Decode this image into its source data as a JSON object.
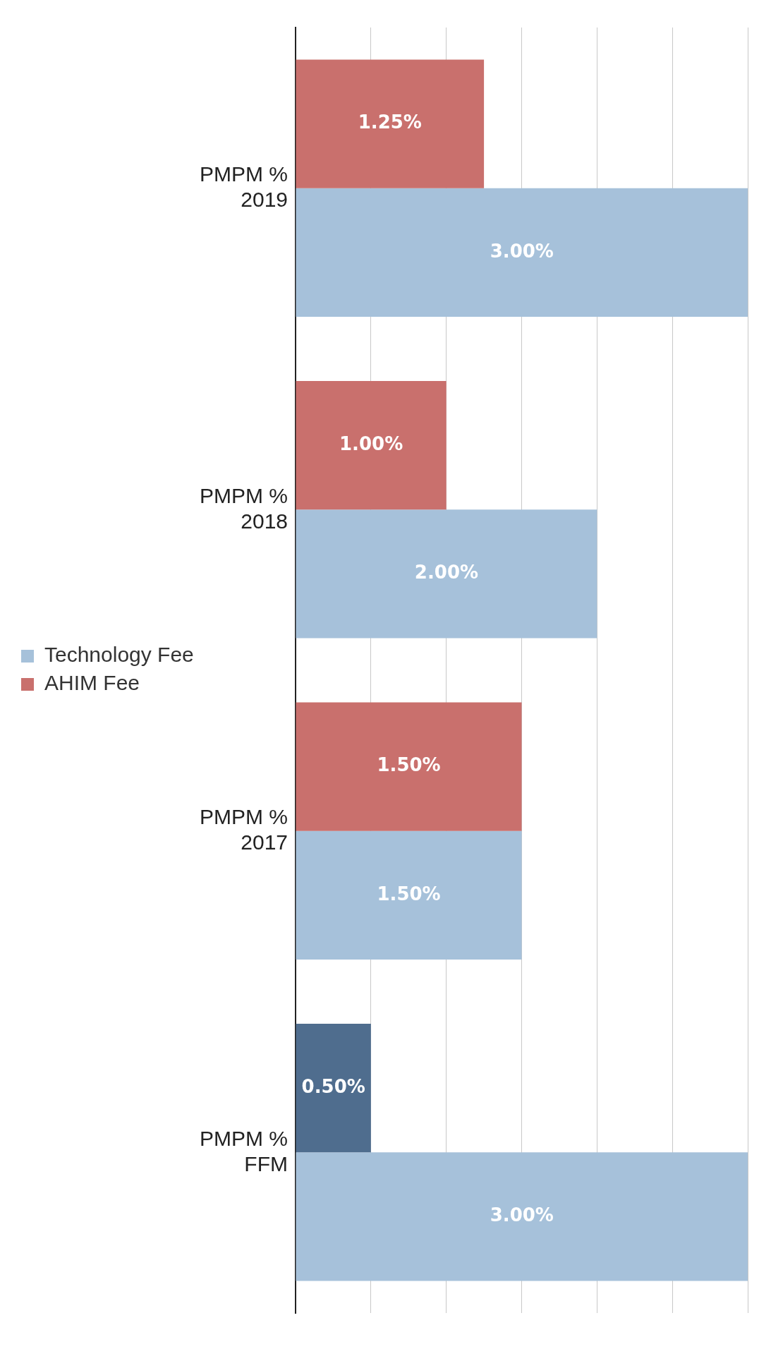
{
  "chart_data": {
    "type": "bar",
    "orientation": "horizontal",
    "categories": [
      "PMPM %\n2019",
      "PMPM %\n2018",
      "PMPM %\n2017",
      "PMPM %\nFFM"
    ],
    "series": [
      {
        "name": "AHIM Fee",
        "color": "#c9706d",
        "colors": [
          "#c9706d",
          "#c9706d",
          "#c9706d",
          "#4f6d8e"
        ],
        "values": [
          1.25,
          1.0,
          1.5,
          0.5
        ],
        "value_labels": [
          "1.25%",
          "1.00%",
          "1.50%",
          "0.50%"
        ]
      },
      {
        "name": "Technology Fee",
        "color": "#a6c1da",
        "values": [
          3.0,
          2.0,
          1.5,
          3.0
        ],
        "value_labels": [
          "3.00%",
          "2.00%",
          "1.50%",
          "3.00%"
        ]
      }
    ],
    "grid": "x",
    "legend": "left"
  }
}
